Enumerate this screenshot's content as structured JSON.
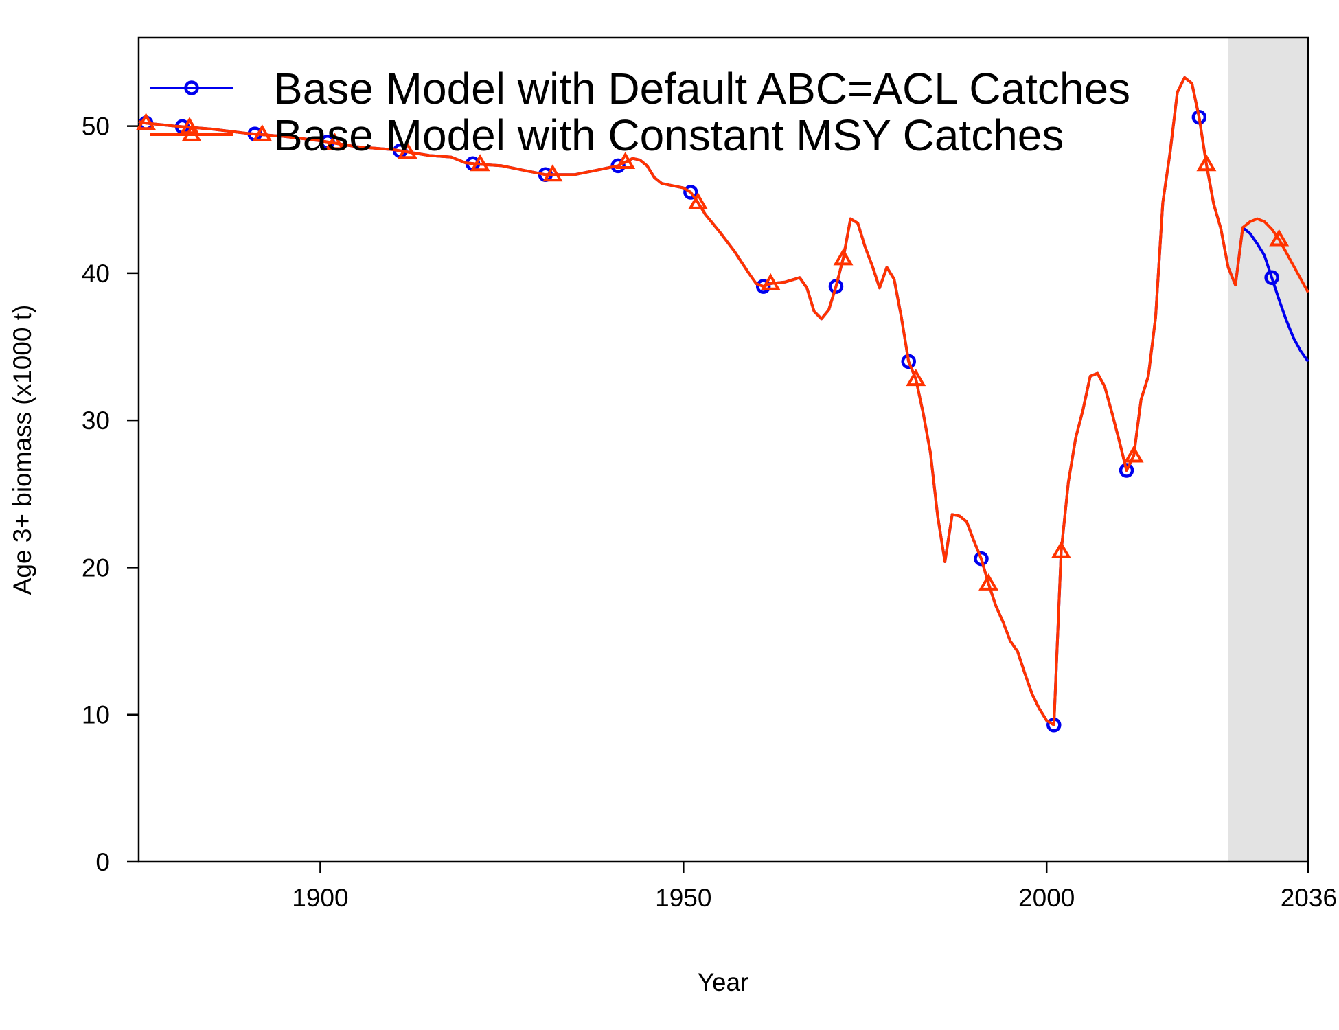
{
  "chart_data": {
    "type": "line",
    "xlabel": "Year",
    "ylabel": "Age 3+ biomass (x1000 t)",
    "xlim": [
      1875,
      2036
    ],
    "ylim": [
      0,
      56
    ],
    "x_ticks": [
      1900,
      1950,
      2000,
      2036
    ],
    "y_ticks": [
      0,
      10,
      20,
      30,
      40,
      50
    ],
    "grid": false,
    "legend_position": "top-left",
    "forecast_shading": {
      "start": 2025,
      "end": 2036,
      "color": "#e3e3e3"
    },
    "series": [
      {
        "name": "Base Model with Default ABC=ACL Catches",
        "color": "#0000ee",
        "marker": "circle",
        "marker_years": [
          1876,
          1881,
          1891,
          1901,
          1911,
          1921,
          1931,
          1941,
          1951,
          1961,
          1971,
          1981,
          1991,
          2001,
          2011,
          2021,
          2031
        ],
        "points": [
          [
            2027,
            43.1
          ],
          [
            2028,
            42.7
          ],
          [
            2029,
            42.0
          ],
          [
            2030,
            41.2
          ],
          [
            2031,
            39.7
          ],
          [
            2032,
            38.2
          ],
          [
            2033,
            36.8
          ],
          [
            2034,
            35.6
          ],
          [
            2035,
            34.7
          ],
          [
            2036,
            34.0
          ]
        ]
      },
      {
        "name": "Base Model with Constant MSY Catches",
        "color": "#ff3300",
        "marker": "triangle",
        "marker_years": [
          1876,
          1882,
          1892,
          1902,
          1912,
          1922,
          1932,
          1942,
          1952,
          1962,
          1972,
          1982,
          1992,
          2002,
          2012,
          2022,
          2032
        ],
        "points": [
          [
            2027,
            43.1
          ],
          [
            2028,
            43.5
          ],
          [
            2029,
            43.7
          ],
          [
            2030,
            43.5
          ],
          [
            2031,
            43.0
          ],
          [
            2032,
            42.3
          ],
          [
            2033,
            41.4
          ],
          [
            2034,
            40.5
          ],
          [
            2035,
            39.6
          ],
          [
            2036,
            38.7
          ]
        ]
      }
    ],
    "shared_history": [
      [
        1875,
        50.3
      ],
      [
        1876,
        50.2
      ],
      [
        1880,
        50.0
      ],
      [
        1885,
        49.8
      ],
      [
        1890,
        49.5
      ],
      [
        1895,
        49.3
      ],
      [
        1900,
        49.0
      ],
      [
        1905,
        48.6
      ],
      [
        1910,
        48.4
      ],
      [
        1915,
        48.0
      ],
      [
        1918,
        47.9
      ],
      [
        1920,
        47.5
      ],
      [
        1922,
        47.4
      ],
      [
        1925,
        47.3
      ],
      [
        1928,
        47.0
      ],
      [
        1931,
        46.7
      ],
      [
        1935,
        46.7
      ],
      [
        1938,
        47.0
      ],
      [
        1941,
        47.3
      ],
      [
        1943,
        47.8
      ],
      [
        1944,
        47.7
      ],
      [
        1945,
        47.3
      ],
      [
        1946,
        46.5
      ],
      [
        1947,
        46.1
      ],
      [
        1948,
        46.0
      ],
      [
        1950,
        45.8
      ],
      [
        1951,
        45.5
      ],
      [
        1952,
        44.8
      ],
      [
        1953,
        44.0
      ],
      [
        1955,
        42.8
      ],
      [
        1957,
        41.5
      ],
      [
        1959,
        40.0
      ],
      [
        1960,
        39.3
      ],
      [
        1961,
        39.1
      ],
      [
        1962,
        39.3
      ],
      [
        1964,
        39.4
      ],
      [
        1966,
        39.7
      ],
      [
        1967,
        39.0
      ],
      [
        1968,
        37.4
      ],
      [
        1969,
        36.9
      ],
      [
        1970,
        37.5
      ],
      [
        1971,
        39.1
      ],
      [
        1972,
        41.0
      ],
      [
        1973,
        43.7
      ],
      [
        1974,
        43.4
      ],
      [
        1975,
        41.8
      ],
      [
        1976,
        40.5
      ],
      [
        1977,
        39.0
      ],
      [
        1978,
        40.4
      ],
      [
        1979,
        39.6
      ],
      [
        1980,
        37.0
      ],
      [
        1981,
        34.0
      ],
      [
        1982,
        32.8
      ],
      [
        1983,
        30.5
      ],
      [
        1984,
        27.8
      ],
      [
        1985,
        23.5
      ],
      [
        1986,
        20.4
      ],
      [
        1987,
        23.6
      ],
      [
        1988,
        23.5
      ],
      [
        1989,
        23.1
      ],
      [
        1990,
        21.8
      ],
      [
        1991,
        20.6
      ],
      [
        1992,
        18.9
      ],
      [
        1993,
        17.4
      ],
      [
        1994,
        16.3
      ],
      [
        1995,
        15.0
      ],
      [
        1996,
        14.3
      ],
      [
        1997,
        12.8
      ],
      [
        1998,
        11.4
      ],
      [
        1999,
        10.4
      ],
      [
        2000,
        9.6
      ],
      [
        2001,
        9.3
      ],
      [
        2002,
        21.1
      ],
      [
        2003,
        25.8
      ],
      [
        2004,
        28.8
      ],
      [
        2005,
        30.7
      ],
      [
        2006,
        33.0
      ],
      [
        2007,
        33.2
      ],
      [
        2008,
        32.3
      ],
      [
        2009,
        30.5
      ],
      [
        2010,
        28.6
      ],
      [
        2011,
        26.6
      ],
      [
        2012,
        27.6
      ],
      [
        2013,
        31.4
      ],
      [
        2014,
        33.0
      ],
      [
        2015,
        37.0
      ],
      [
        2016,
        44.8
      ],
      [
        2017,
        48.2
      ],
      [
        2018,
        52.3
      ],
      [
        2019,
        53.3
      ],
      [
        2020,
        52.9
      ],
      [
        2021,
        50.6
      ],
      [
        2022,
        47.4
      ],
      [
        2023,
        44.7
      ],
      [
        2024,
        43.0
      ],
      [
        2025,
        40.4
      ],
      [
        2026,
        39.2
      ],
      [
        2027,
        43.1
      ]
    ]
  }
}
